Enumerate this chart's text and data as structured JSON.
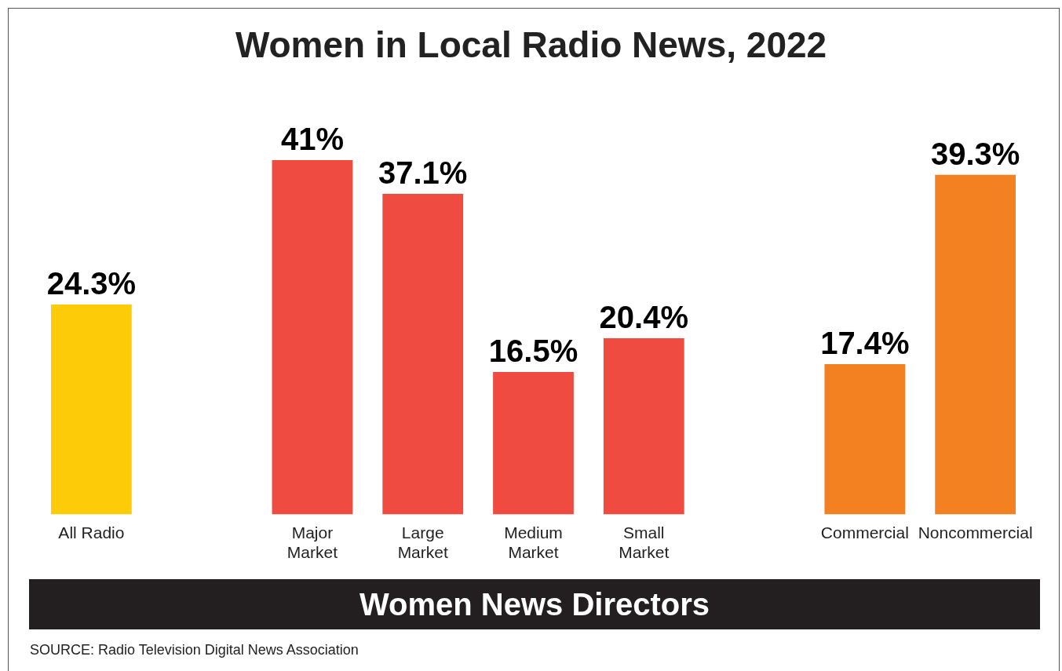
{
  "chart_data": {
    "type": "bar",
    "title": "Women in Local Radio News, 2022",
    "xlabel": "Women News Directors",
    "categories": [
      "All Radio",
      null,
      "Major\nMarket",
      "Large\nMarket",
      "Medium\nMarket",
      "Small\nMarket",
      null,
      "Commercial",
      "Noncommercial"
    ],
    "values": [
      24.3,
      null,
      41,
      37.1,
      16.5,
      20.4,
      null,
      17.4,
      39.3
    ],
    "colors": [
      "#fecb08",
      null,
      "#ef4b40",
      "#ef4b40",
      "#ef4b40",
      "#ef4b40",
      null,
      "#f38121",
      "#f38121"
    ],
    "value_labels": [
      "24.3%",
      null,
      "41%",
      "37.1%",
      "16.5%",
      "20.4%",
      null,
      "17.4%",
      "39.3%"
    ],
    "tick_labels": "x",
    "grid": false,
    "legend": false,
    "annotations": [
      "SOURCE: Radio Television Digital News Association"
    ]
  }
}
